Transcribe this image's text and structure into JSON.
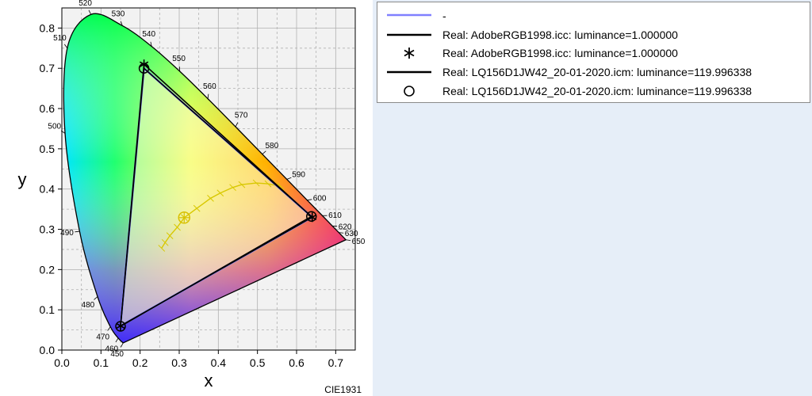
{
  "chart_data": {
    "type": "scatter",
    "title": "",
    "xlabel": "x",
    "ylabel": "y",
    "xlim": [
      0.0,
      0.75
    ],
    "ylim": [
      0.0,
      0.85
    ],
    "x_ticks": [
      "0.0",
      "0.1",
      "0.2",
      "0.3",
      "0.4",
      "0.5",
      "0.6",
      "0.7"
    ],
    "y_ticks": [
      "0.0",
      "0.1",
      "0.2",
      "0.3",
      "0.4",
      "0.5",
      "0.6",
      "0.7",
      "0.8"
    ],
    "grid": true,
    "footer": "CIE1931",
    "spectral_locus": [
      {
        "nm": 450,
        "x": 0.1566,
        "y": 0.0177
      },
      {
        "nm": 460,
        "x": 0.144,
        "y": 0.0297
      },
      {
        "nm": 470,
        "x": 0.1241,
        "y": 0.0578
      },
      {
        "nm": 480,
        "x": 0.0913,
        "y": 0.1327
      },
      {
        "nm": 490,
        "x": 0.0454,
        "y": 0.295
      },
      {
        "nm": 500,
        "x": 0.0082,
        "y": 0.5384
      },
      {
        "nm": 510,
        "x": 0.0139,
        "y": 0.7502
      },
      {
        "nm": 520,
        "x": 0.0743,
        "y": 0.8338
      },
      {
        "nm": 530,
        "x": 0.1547,
        "y": 0.8059
      },
      {
        "nm": 540,
        "x": 0.2296,
        "y": 0.7543
      },
      {
        "nm": 550,
        "x": 0.3016,
        "y": 0.6923
      },
      {
        "nm": 560,
        "x": 0.3731,
        "y": 0.6245
      },
      {
        "nm": 570,
        "x": 0.4441,
        "y": 0.5547
      },
      {
        "nm": 580,
        "x": 0.5125,
        "y": 0.4866
      },
      {
        "nm": 590,
        "x": 0.5752,
        "y": 0.4242
      },
      {
        "nm": 600,
        "x": 0.627,
        "y": 0.3725
      },
      {
        "nm": 610,
        "x": 0.6658,
        "y": 0.334
      },
      {
        "nm": 620,
        "x": 0.6915,
        "y": 0.3083
      },
      {
        "nm": 630,
        "x": 0.7079,
        "y": 0.292
      },
      {
        "nm": 650,
        "x": 0.726,
        "y": 0.274
      }
    ],
    "planckian_locus": [
      {
        "x": 0.559,
        "y": 0.407
      },
      {
        "x": 0.527,
        "y": 0.413
      },
      {
        "x": 0.497,
        "y": 0.415
      },
      {
        "x": 0.46,
        "y": 0.411
      },
      {
        "x": 0.437,
        "y": 0.404
      },
      {
        "x": 0.405,
        "y": 0.39
      },
      {
        "x": 0.38,
        "y": 0.377
      },
      {
        "x": 0.345,
        "y": 0.352
      },
      {
        "x": 0.313,
        "y": 0.329
      },
      {
        "x": 0.295,
        "y": 0.305
      },
      {
        "x": 0.276,
        "y": 0.284
      },
      {
        "x": 0.264,
        "y": 0.267
      },
      {
        "x": 0.255,
        "y": 0.253
      }
    ],
    "white_point": {
      "x": 0.3127,
      "y": 0.329
    },
    "series": [
      {
        "name": "-",
        "style": "line",
        "color": "#8080ff",
        "points": [
          {
            "x": 0.64,
            "y": 0.33
          },
          {
            "x": 0.21,
            "y": 0.7
          },
          {
            "x": 0.15,
            "y": 0.06
          }
        ]
      },
      {
        "name": "Real: AdobeRGB1998.icc: luminance=1.000000",
        "style": "line",
        "color": "#000000",
        "points": [
          {
            "x": 0.64,
            "y": 0.33
          },
          {
            "x": 0.21,
            "y": 0.71
          },
          {
            "x": 0.15,
            "y": 0.06
          }
        ]
      },
      {
        "name": "Real: AdobeRGB1998.icc: luminance=1.000000",
        "style": "marker-star",
        "color": "#000000",
        "points": [
          {
            "x": 0.64,
            "y": 0.33
          },
          {
            "x": 0.21,
            "y": 0.71
          },
          {
            "x": 0.15,
            "y": 0.06
          }
        ]
      },
      {
        "name": "Real: LQ156D1JW42_20-01-2020.icm: luminance=119.996338",
        "style": "line",
        "color": "#000000",
        "points": [
          {
            "x": 0.638,
            "y": 0.332
          },
          {
            "x": 0.21,
            "y": 0.7
          },
          {
            "x": 0.15,
            "y": 0.059
          }
        ]
      },
      {
        "name": "Real: LQ156D1JW42_20-01-2020.icm: luminance=119.996338",
        "style": "marker-circle",
        "color": "#000000",
        "points": [
          {
            "x": 0.638,
            "y": 0.332
          },
          {
            "x": 0.21,
            "y": 0.7
          },
          {
            "x": 0.15,
            "y": 0.059
          }
        ]
      }
    ]
  },
  "legend": {
    "items": [
      {
        "label": "-",
        "symbol": "line-blue"
      },
      {
        "label": "Real: AdobeRGB1998.icc: luminance=1.000000",
        "symbol": "line-black"
      },
      {
        "label": "Real: AdobeRGB1998.icc: luminance=1.000000",
        "symbol": "star"
      },
      {
        "label": "Real: LQ156D1JW42_20-01-2020.icm: luminance=119.996338",
        "symbol": "line-black"
      },
      {
        "label": "Real: LQ156D1JW42_20-01-2020.icm: luminance=119.996338",
        "symbol": "circle"
      }
    ]
  },
  "colors": {
    "grid": "#b0b0b0",
    "plot_background": "#f2f2f2",
    "gamut_fill": "#fffbd0",
    "blue_series": "#8080ff"
  }
}
